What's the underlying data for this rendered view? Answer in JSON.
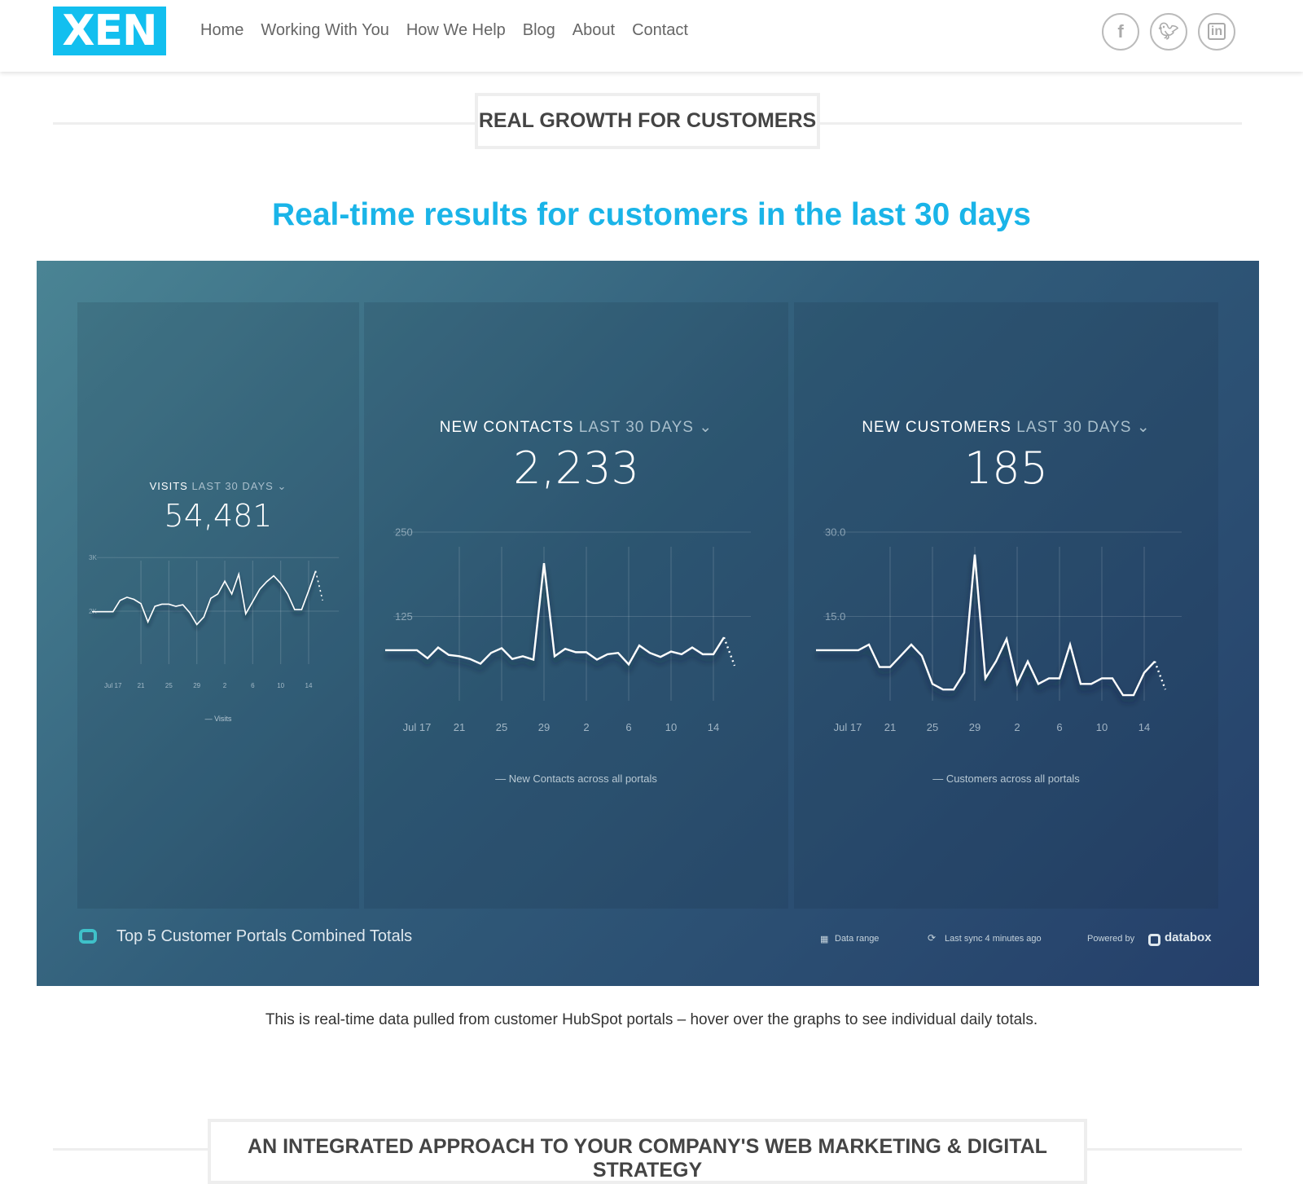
{
  "header": {
    "logo": "XEN",
    "nav": [
      "Home",
      "Working With You",
      "How We Help",
      "Blog",
      "About",
      "Contact"
    ],
    "social": [
      "facebook-icon",
      "twitter-icon",
      "linkedin-icon"
    ]
  },
  "section1": {
    "title": "REAL GROWTH FOR CUSTOMERS"
  },
  "headline": "Real-time results for customers in the last 30 days",
  "dashboard": {
    "panels": [
      {
        "metric": "VISITS",
        "period": "LAST 30 DAYS",
        "value": "54,481",
        "legend": "Visits"
      },
      {
        "metric": "NEW CONTACTS",
        "period": "LAST 30 DAYS",
        "value": "2,233",
        "legend": "New Contacts across all portals"
      },
      {
        "metric": "NEW CUSTOMERS",
        "period": "LAST 30 DAYS",
        "value": "185",
        "legend": "Customers across all portals"
      }
    ],
    "footer": {
      "title": "Top 5 Customer Portals Combined Totals",
      "data_range": "Data range",
      "last_sync": "Last sync 4 minutes ago",
      "powered_by": "Powered by",
      "brand": "databox"
    }
  },
  "chart_data": [
    {
      "type": "line",
      "name": "Visits",
      "x_start": "Jul 14",
      "x_end": "Aug 16",
      "ylim": [
        0,
        3000
      ],
      "yticks": [
        "2K",
        "3K"
      ],
      "xticks": [
        "Jul 17",
        "21",
        "25",
        "29",
        "2",
        "6",
        "10",
        "14"
      ],
      "last_point_partial": true,
      "values": [
        1990,
        1990,
        1990,
        1990,
        2200,
        2260,
        2220,
        2140,
        1800,
        2090,
        2130,
        2130,
        2090,
        2120,
        1970,
        1750,
        1890,
        2240,
        2320,
        2560,
        2320,
        2690,
        1950,
        2180,
        2410,
        2550,
        2660,
        2520,
        2320,
        2030,
        2030,
        2380,
        2750,
        2200
      ]
    },
    {
      "type": "line",
      "name": "New Contacts across all portals",
      "x_start": "Jul 14",
      "x_end": "Aug 16",
      "ylim": [
        0,
        250
      ],
      "yticks": [
        "125",
        "250"
      ],
      "xticks": [
        "Jul 17",
        "21",
        "25",
        "29",
        "2",
        "6",
        "10",
        "14"
      ],
      "last_point_partial": true,
      "values": [
        75,
        75,
        75,
        75,
        63,
        79,
        68,
        66,
        62,
        55,
        71,
        78,
        62,
        66,
        61,
        204,
        66,
        77,
        72,
        72,
        61,
        69,
        71,
        54,
        82,
        71,
        65,
        73,
        69,
        79,
        69,
        69,
        94,
        52
      ]
    },
    {
      "type": "line",
      "name": "Customers across all portals",
      "x_start": "Jul 14",
      "x_end": "Aug 16",
      "ylim": [
        0,
        30
      ],
      "yticks": [
        "15.0",
        "30.0"
      ],
      "xticks": [
        "Jul 17",
        "21",
        "25",
        "29",
        "2",
        "6",
        "10",
        "14"
      ],
      "last_point_partial": true,
      "values": [
        9,
        9,
        9,
        9,
        9,
        10,
        6,
        6,
        8,
        10,
        8,
        3,
        2,
        2,
        5,
        26,
        4,
        7,
        11,
        3,
        7,
        3,
        4,
        4,
        10,
        3,
        3,
        4,
        4,
        1,
        1,
        5,
        7,
        2
      ]
    }
  ],
  "caption": "This is real-time data pulled from customer HubSpot portals – hover over the graphs to see individual daily totals.",
  "section2": {
    "title": "AN INTEGRATED APPROACH TO YOUR COMPANY'S WEB MARKETING & DIGITAL STRATEGY"
  }
}
